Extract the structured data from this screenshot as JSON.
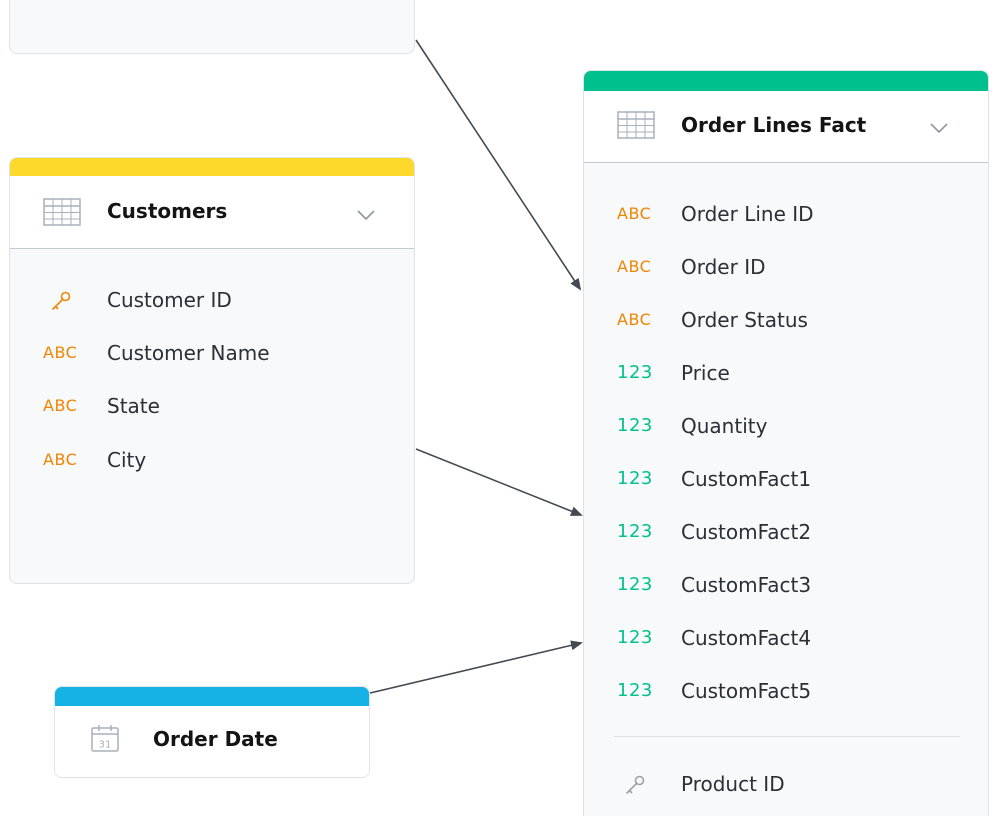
{
  "colors": {
    "customers_accent": "#fcd92a",
    "order_lines_accent": "#00c18d",
    "order_date_accent": "#15b2e6",
    "attribute_type": "#f18400",
    "fact_type": "#00c18d",
    "key_primary": "#f18400",
    "key_reference": "#9aa1ab",
    "connector": "#444a52"
  },
  "customers": {
    "title": "Customers",
    "fields": [
      {
        "type": "key",
        "icon": "key-icon",
        "label": "Customer ID"
      },
      {
        "type": "ABC",
        "label": "Customer Name"
      },
      {
        "type": "ABC",
        "label": "State"
      },
      {
        "type": "ABC",
        "label": "City"
      }
    ]
  },
  "order_lines": {
    "title": "Order Lines Fact",
    "fields": [
      {
        "type": "ABC",
        "label": "Order Line ID"
      },
      {
        "type": "ABC",
        "label": "Order ID"
      },
      {
        "type": "ABC",
        "label": "Order Status"
      },
      {
        "type": "123",
        "label": "Price"
      },
      {
        "type": "123",
        "label": "Quantity"
      },
      {
        "type": "123",
        "label": "CustomFact1"
      },
      {
        "type": "123",
        "label": "CustomFact2"
      },
      {
        "type": "123",
        "label": "CustomFact3"
      },
      {
        "type": "123",
        "label": "CustomFact4"
      },
      {
        "type": "123",
        "label": "CustomFact5"
      }
    ],
    "references": [
      {
        "type": "key",
        "icon": "key-icon",
        "label": "Product ID"
      }
    ]
  },
  "order_date": {
    "title": "Order Date",
    "icon": "calendar-icon",
    "calendar_day": "31"
  }
}
